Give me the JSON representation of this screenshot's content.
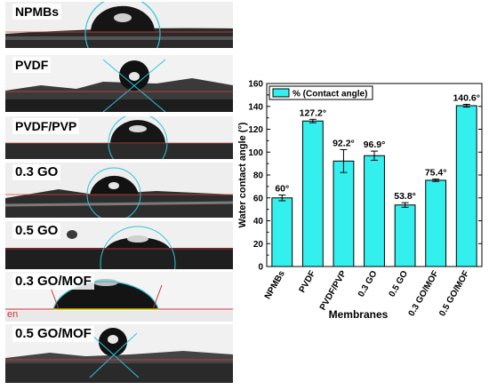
{
  "figure": {
    "panels": [
      {
        "label": "NPMBs"
      },
      {
        "label": "PVDF"
      },
      {
        "label": "PVDF/PVP"
      },
      {
        "label": "0.3 GO"
      },
      {
        "label": "0.5 GO"
      },
      {
        "label": "0.3 GO/MOF"
      },
      {
        "label": "0.5 GO/MOF"
      }
    ],
    "corner_mark": "en"
  },
  "chart_data": {
    "type": "bar",
    "categories": [
      "NPMBs",
      "PVDF",
      "PVDF/PVP",
      "0.3 GO",
      "0.5 GO",
      "0.3 GO/MOF",
      "0.5 GO/MOF"
    ],
    "series": [
      {
        "name": "% (Contact angle)",
        "values": [
          60,
          127.2,
          92.2,
          96.9,
          53.8,
          75.4,
          140.6
        ],
        "errors": [
          2.5,
          1.5,
          10,
          4,
          2,
          1,
          1.2
        ],
        "data_labels": [
          "60°",
          "127.2°",
          "92.2°",
          "96.9°",
          "53.8°",
          "75.4°",
          "140.6°"
        ]
      }
    ],
    "xlabel": "Membranes",
    "ylabel": "Water contact angle (°)",
    "ylim": [
      0,
      160
    ],
    "yticks": [
      0,
      20,
      40,
      60,
      80,
      100,
      120,
      140,
      160
    ],
    "legend_position": "top-left",
    "grid": false,
    "colors": {
      "bar": "#33f0ee",
      "edge": "#000000"
    }
  }
}
